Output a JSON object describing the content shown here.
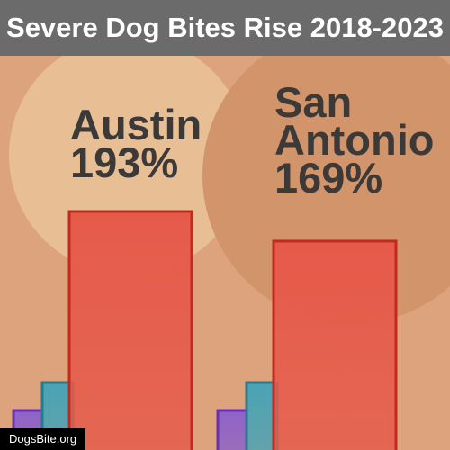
{
  "title": "Severe Dog Bites Rise 2018-2023",
  "credit": "DogsBite.org",
  "chart_data": {
    "type": "bar",
    "categories": [
      "Austin",
      "San Antonio"
    ],
    "series": [
      {
        "values": [
          6,
          6
        ],
        "color": "#8e63c8",
        "stroke": "#6a2fb3"
      },
      {
        "values": [
          16,
          16
        ],
        "color": "#4aa3b4",
        "stroke": "#237c8f"
      },
      {
        "values": [
          193,
          169
        ],
        "color": "#e65a4a",
        "stroke": "#c22a20"
      }
    ],
    "labels": [
      {
        "lines": [
          "Austin",
          "193%"
        ]
      },
      {
        "lines": [
          "San",
          "Antonio",
          "169%"
        ]
      }
    ],
    "ylim": [
      0,
      193
    ],
    "grid": false
  }
}
